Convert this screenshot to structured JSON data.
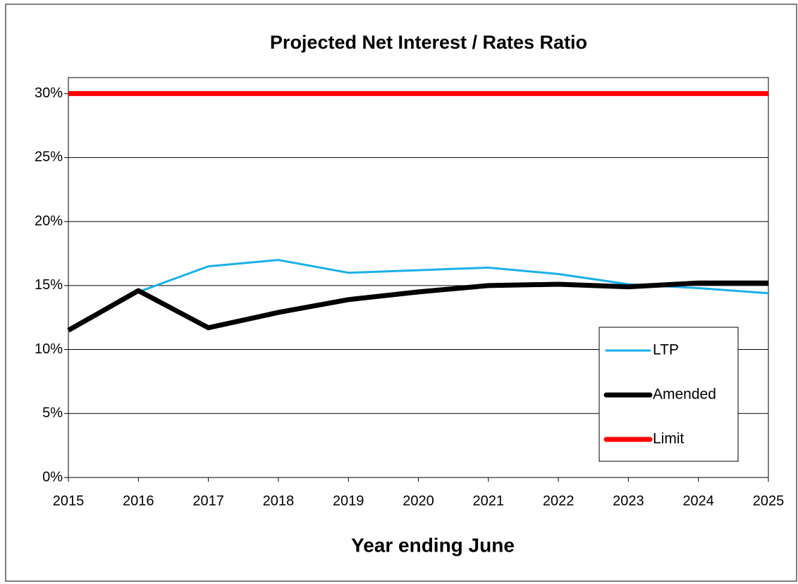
{
  "chart_data": {
    "type": "line",
    "title": "Projected Net Interest  / Rates Ratio",
    "xlabel": "Year ending June",
    "x": [
      2015,
      2016,
      2017,
      2018,
      2019,
      2020,
      2021,
      2022,
      2023,
      2024,
      2025
    ],
    "series": [
      {
        "name": "LTP",
        "color": "#1ab0e8",
        "values": [
          11.5,
          14.5,
          16.5,
          17.0,
          16.0,
          16.2,
          16.4,
          15.9,
          15.1,
          14.8,
          14.4
        ]
      },
      {
        "name": "Amended",
        "color": "#000000",
        "values": [
          11.5,
          14.6,
          11.7,
          12.9,
          13.9,
          14.5,
          15.0,
          15.1,
          14.9,
          15.2,
          15.2
        ]
      },
      {
        "name": "Limit",
        "color": "#ff0000",
        "values": [
          30,
          30,
          30,
          30,
          30,
          30,
          30,
          30,
          30,
          30,
          30
        ]
      }
    ],
    "xlim": [
      2015,
      2025
    ],
    "xticks": [
      2015,
      2016,
      2017,
      2018,
      2019,
      2020,
      2021,
      2022,
      2023,
      2024,
      2025
    ],
    "ylim": [
      0,
      31.25
    ],
    "yticks": [
      {
        "value": 0,
        "label": "0%"
      },
      {
        "value": 5,
        "label": "5%"
      },
      {
        "value": 10,
        "label": "10%"
      },
      {
        "value": 15,
        "label": "15%"
      },
      {
        "value": 20,
        "label": "20%"
      },
      {
        "value": 25,
        "label": "25%"
      },
      {
        "value": 30,
        "label": "30%"
      }
    ],
    "grid": true,
    "legend": "lower right"
  }
}
